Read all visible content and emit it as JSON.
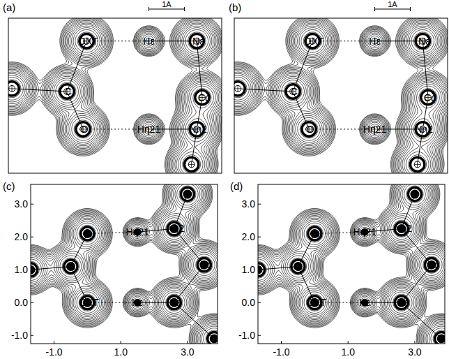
{
  "chart_data": [
    {
      "type": "scatter",
      "title": "(a)",
      "tick_labels": false,
      "marker": "crosshair",
      "color": "#000000",
      "xlim": [
        -2.2,
        3.8
      ],
      "ylim": [
        -3.75,
        0.65
      ],
      "scale_bar": {
        "label": "1A",
        "length": 1
      },
      "series": [
        {
          "x": [
            0,
            -0.55,
            -0.1,
            1.75,
            3.1,
            3.25,
            3.1,
            1.75,
            2.95,
            -2.1
          ],
          "values": [
            0,
            -1.43,
            -2.5,
            0,
            0,
            -1.6,
            -2.5,
            -2.5,
            -3.5,
            -1.35
          ],
          "labels": [
            "OXT",
            "C",
            "O",
            "Hε",
            "Nε",
            "Cζ",
            "Nη2",
            "Hη21",
            null,
            null
          ]
        }
      ],
      "bonds": [
        [
          0,
          1
        ],
        [
          1,
          2
        ],
        [
          1,
          9
        ],
        [
          4,
          5
        ],
        [
          5,
          6
        ],
        [
          6,
          8
        ],
        [
          3,
          4
        ],
        [
          7,
          6
        ]
      ],
      "hbonds": [
        [
          0,
          3
        ],
        [
          2,
          7
        ]
      ]
    },
    {
      "type": "scatter",
      "title": "(b)",
      "tick_labels": false,
      "marker": "crosshair",
      "color": "#000000",
      "xlim": [
        -2.2,
        3.8
      ],
      "ylim": [
        -3.75,
        0.65
      ],
      "scale_bar": {
        "label": "1A",
        "length": 1
      },
      "series": [
        {
          "x": [
            0,
            -0.55,
            -0.1,
            1.75,
            3.1,
            3.25,
            3.1,
            1.75,
            2.95,
            -2.1
          ],
          "values": [
            0,
            -1.43,
            -2.5,
            0,
            0,
            -1.6,
            -2.5,
            -2.5,
            -3.5,
            -1.35
          ],
          "labels": [
            "OXT",
            "C",
            "O",
            "Hε",
            "Nε",
            "Cζ",
            "Nη2",
            "Hη21",
            null,
            null
          ]
        }
      ],
      "bonds": [
        [
          0,
          1
        ],
        [
          1,
          2
        ],
        [
          1,
          9
        ],
        [
          4,
          5
        ],
        [
          5,
          6
        ],
        [
          6,
          8
        ],
        [
          3,
          4
        ],
        [
          7,
          6
        ]
      ],
      "hbonds": [
        [
          0,
          3
        ],
        [
          2,
          7
        ]
      ]
    },
    {
      "type": "scatter",
      "title": "(c)",
      "marker": "dot",
      "color": "#000000",
      "xlim": [
        -1.7,
        3.9
      ],
      "ylim": [
        -1.25,
        3.6
      ],
      "xticks": [
        {
          "value": -1,
          "label": "-1.0"
        },
        {
          "value": 1,
          "label": "1.0"
        },
        {
          "value": 3,
          "label": "3.0"
        }
      ],
      "yticks": [
        {
          "value": -1,
          "label": "-1.0"
        },
        {
          "value": 0,
          "label": "0.0"
        },
        {
          "value": 1,
          "label": "1.0"
        },
        {
          "value": 2,
          "label": "2.0"
        },
        {
          "value": 3,
          "label": "3.0"
        }
      ],
      "series": [
        {
          "x": [
            0,
            -0.5,
            0,
            1.5,
            2.6,
            3.5,
            2.6,
            1.5,
            3.0,
            -1.7,
            3.8
          ],
          "values": [
            0,
            1.1,
            2.1,
            0,
            0,
            1.15,
            2.25,
            2.15,
            3.3,
            1.0,
            -1.1
          ],
          "labels": [
            "OXT",
            "C",
            "O",
            "Hε",
            "Nε",
            "Cζ",
            "Nη2",
            "Hη21",
            null,
            null,
            null
          ]
        }
      ],
      "bonds": [
        [
          0,
          1
        ],
        [
          1,
          2
        ],
        [
          1,
          9
        ],
        [
          4,
          5
        ],
        [
          5,
          6
        ],
        [
          6,
          8
        ],
        [
          3,
          4
        ],
        [
          7,
          6
        ],
        [
          4,
          10
        ]
      ],
      "hbonds": [
        [
          0,
          3
        ],
        [
          2,
          7
        ]
      ]
    },
    {
      "type": "scatter",
      "title": "(d)",
      "marker": "dot",
      "color": "#000000",
      "xlim": [
        -1.7,
        3.9
      ],
      "ylim": [
        -1.25,
        3.6
      ],
      "xticks": [
        {
          "value": -1,
          "label": "-1.0"
        },
        {
          "value": 1,
          "label": "1.0"
        },
        {
          "value": 3,
          "label": "3.0"
        }
      ],
      "yticks": [
        {
          "value": -1,
          "label": "-1.0"
        },
        {
          "value": 0,
          "label": "0.0"
        },
        {
          "value": 1,
          "label": "1.0"
        },
        {
          "value": 2,
          "label": "2.0"
        },
        {
          "value": 3,
          "label": "3.0"
        }
      ],
      "series": [
        {
          "x": [
            0,
            -0.5,
            0,
            1.5,
            2.6,
            3.5,
            2.6,
            1.5,
            3.0,
            -1.7,
            3.8
          ],
          "values": [
            0,
            1.1,
            2.1,
            0,
            0,
            1.15,
            2.25,
            2.15,
            3.3,
            1.0,
            -1.1
          ],
          "labels": [
            "OXT",
            "C",
            "O",
            "Hε",
            "Nε",
            "Cζ",
            "Nη2",
            "Hη21",
            null,
            null,
            null
          ]
        }
      ],
      "bonds": [
        [
          0,
          1
        ],
        [
          1,
          2
        ],
        [
          1,
          9
        ],
        [
          4,
          5
        ],
        [
          5,
          6
        ],
        [
          6,
          8
        ],
        [
          3,
          4
        ],
        [
          7,
          6
        ],
        [
          4,
          10
        ]
      ],
      "hbonds": [
        [
          0,
          3
        ],
        [
          2,
          7
        ]
      ]
    }
  ]
}
